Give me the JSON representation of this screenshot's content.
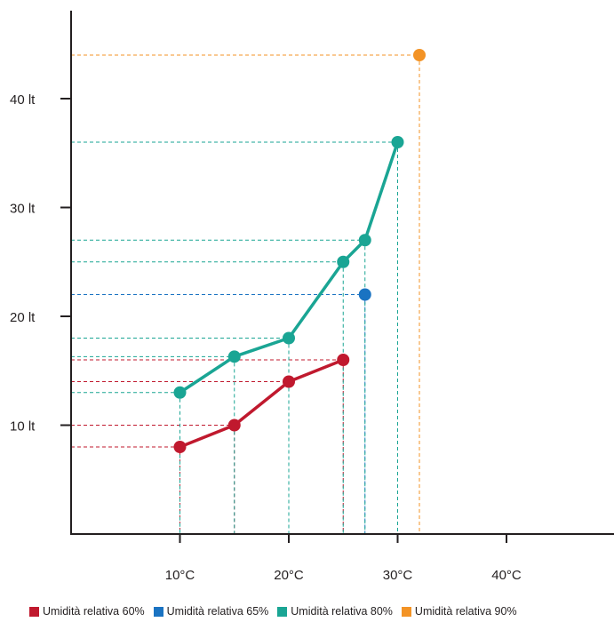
{
  "chart_data": {
    "type": "line",
    "x_ticks": [
      10,
      20,
      30,
      40
    ],
    "x_tick_labels": [
      "10°C",
      "20°C",
      "30°C",
      "40°C"
    ],
    "y_ticks": [
      10,
      20,
      30,
      40
    ],
    "y_tick_labels": [
      "10 lt",
      "20 lt",
      "30 lt",
      "40 lt"
    ],
    "xlim": [
      0,
      50
    ],
    "ylim": [
      0,
      48
    ],
    "grid": false,
    "legend_position": "bottom",
    "series": [
      {
        "name": "Umidità relativa 60%",
        "color": "#c0192e",
        "connected": true,
        "points": [
          [
            10,
            8
          ],
          [
            15,
            10
          ],
          [
            20,
            14
          ],
          [
            25,
            16
          ]
        ]
      },
      {
        "name": "Umidità relativa 65%",
        "color": "#1a73c2",
        "connected": false,
        "points": [
          [
            27,
            22
          ]
        ]
      },
      {
        "name": "Umidità relativa 80%",
        "color": "#1aa594",
        "connected": true,
        "points": [
          [
            10,
            13
          ],
          [
            15,
            16.3
          ],
          [
            20,
            18
          ],
          [
            25,
            25
          ],
          [
            27,
            27
          ],
          [
            30,
            36
          ]
        ]
      },
      {
        "name": "Umidità relativa 90%",
        "color": "#f39325",
        "connected": false,
        "points": [
          [
            32,
            44
          ]
        ]
      }
    ]
  }
}
